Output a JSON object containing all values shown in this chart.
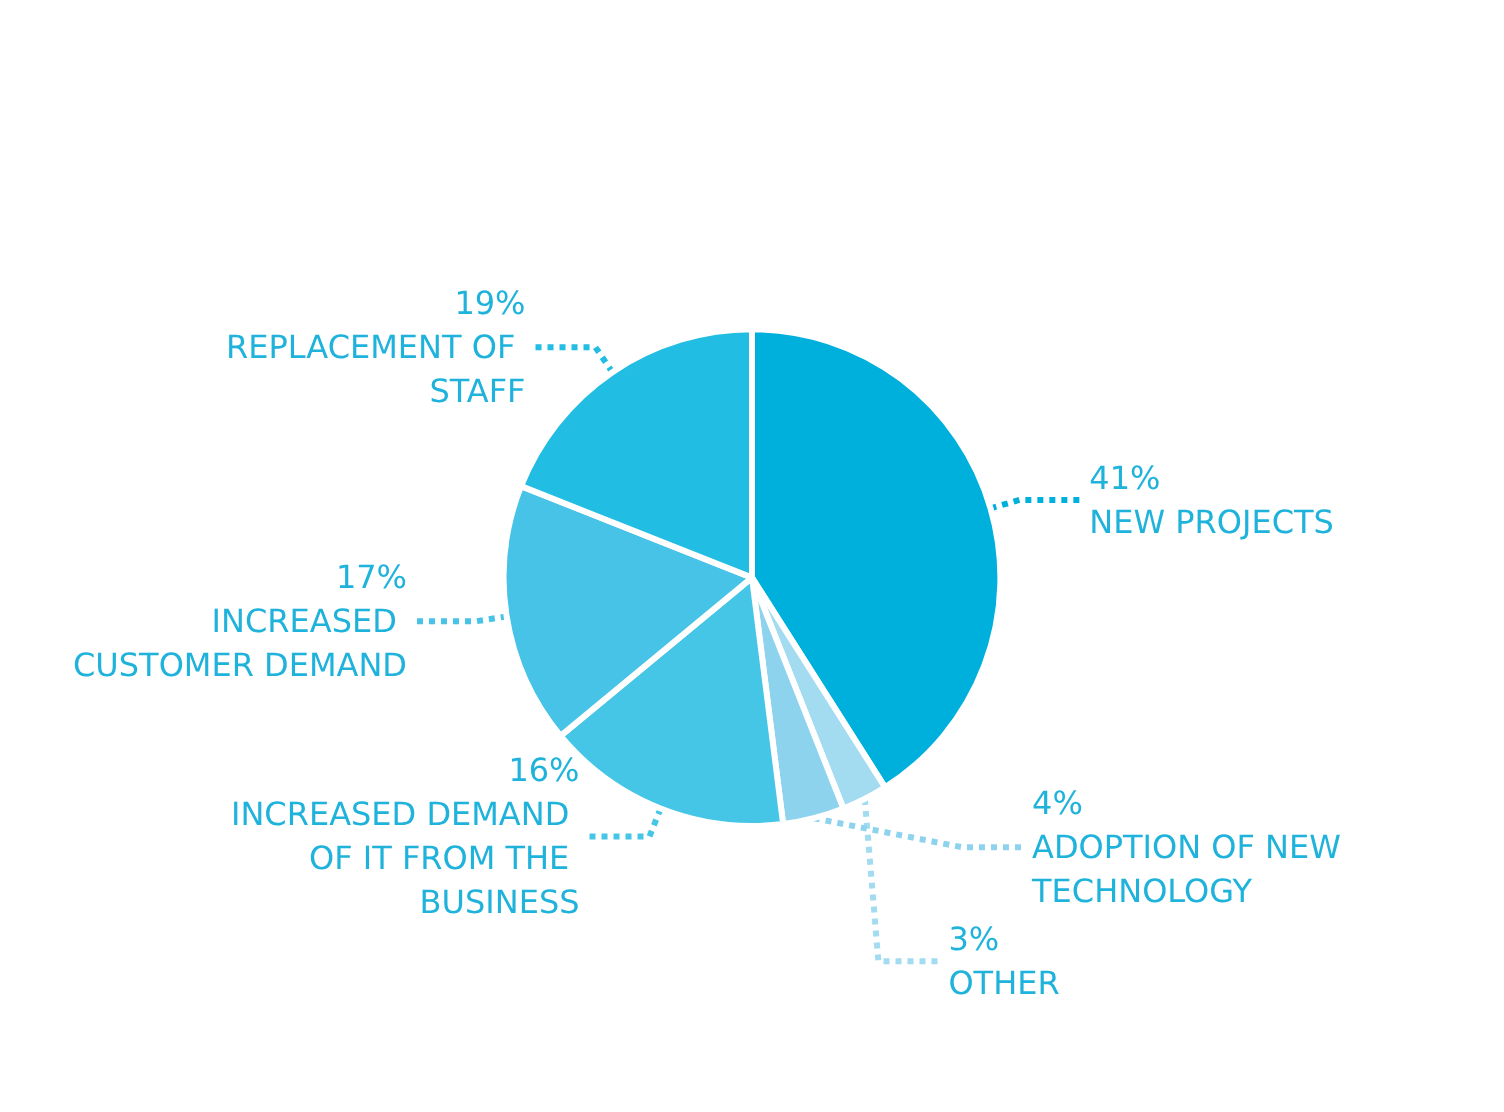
{
  "chart_data": {
    "type": "pie",
    "categories": [
      "NEW PROJECTS",
      "OTHER",
      "ADOPTION OF NEW TECHNOLOGY",
      "INCREASED DEMAND OF IT FROM THE BUSINESS",
      "INCREASED CUSTOMER DEMAND",
      "REPLACEMENT OF STAFF"
    ],
    "values": [
      41,
      3,
      4,
      16,
      17,
      19
    ],
    "colors": [
      "#00b0dc",
      "#a3dcf0",
      "#8ed3ee",
      "#45c6e6",
      "#46c3e6",
      "#22bde3"
    ],
    "value_labels": [
      "41%",
      "3%",
      "4%",
      "16%",
      "17%",
      "19%"
    ]
  }
}
